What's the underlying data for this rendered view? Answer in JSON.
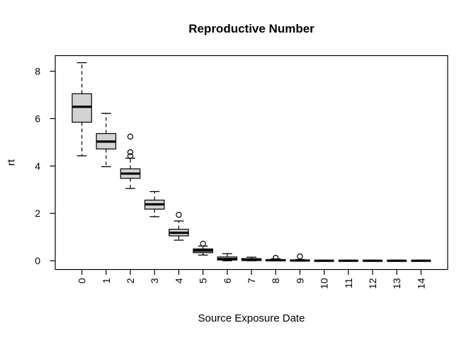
{
  "chart_data": {
    "type": "boxplot",
    "title": "Reproductive Number",
    "xlabel": "Source Exposure Date",
    "ylabel": "rt",
    "categories": [
      "0",
      "1",
      "2",
      "3",
      "4",
      "5",
      "6",
      "7",
      "8",
      "9",
      "10",
      "11",
      "12",
      "13",
      "14"
    ],
    "y_ticks": [
      0,
      2,
      4,
      6,
      8
    ],
    "ylim": [
      -0.37,
      8.66
    ],
    "grid": false,
    "legend": "none",
    "colors": {
      "box_fill": "#d3d3d3",
      "line": "#000000",
      "background": "#ffffff"
    },
    "boxes": [
      {
        "category": "0",
        "whisker_low": 4.43,
        "q1": 5.85,
        "median": 6.5,
        "q3": 7.05,
        "whisker_high": 8.36,
        "outliers": []
      },
      {
        "category": "1",
        "whisker_low": 3.97,
        "q1": 4.72,
        "median": 5.03,
        "q3": 5.37,
        "whisker_high": 6.22,
        "outliers": []
      },
      {
        "category": "2",
        "whisker_low": 3.05,
        "q1": 3.48,
        "median": 3.68,
        "q3": 3.88,
        "whisker_high": 4.33,
        "outliers": [
          4.42,
          4.58,
          5.24
        ]
      },
      {
        "category": "3",
        "whisker_low": 1.86,
        "q1": 2.18,
        "median": 2.38,
        "q3": 2.56,
        "whisker_high": 2.92,
        "outliers": []
      },
      {
        "category": "4",
        "whisker_low": 0.87,
        "q1": 1.05,
        "median": 1.18,
        "q3": 1.33,
        "whisker_high": 1.68,
        "outliers": [
          1.94
        ]
      },
      {
        "category": "5",
        "whisker_low": 0.24,
        "q1": 0.34,
        "median": 0.43,
        "q3": 0.5,
        "whisker_high": 0.62,
        "outliers": [
          0.72
        ]
      },
      {
        "category": "6",
        "whisker_low": 0.0,
        "q1": 0.03,
        "median": 0.07,
        "q3": 0.16,
        "whisker_high": 0.3,
        "outliers": []
      },
      {
        "category": "7",
        "whisker_low": 0.0,
        "q1": 0.01,
        "median": 0.04,
        "q3": 0.09,
        "whisker_high": 0.15,
        "outliers": []
      },
      {
        "category": "8",
        "whisker_low": 0.0,
        "q1": 0.0,
        "median": 0.02,
        "q3": 0.05,
        "whisker_high": 0.08,
        "outliers": [
          0.12
        ]
      },
      {
        "category": "9",
        "whisker_low": 0.0,
        "q1": 0.0,
        "median": 0.01,
        "q3": 0.03,
        "whisker_high": 0.05,
        "outliers": [
          0.18
        ]
      },
      {
        "category": "10",
        "whisker_low": 0.0,
        "q1": 0.0,
        "median": 0.0,
        "q3": 0.0,
        "whisker_high": 0.0,
        "outliers": []
      },
      {
        "category": "11",
        "whisker_low": 0.0,
        "q1": 0.0,
        "median": 0.0,
        "q3": 0.0,
        "whisker_high": 0.0,
        "outliers": []
      },
      {
        "category": "12",
        "whisker_low": 0.0,
        "q1": 0.0,
        "median": 0.0,
        "q3": 0.0,
        "whisker_high": 0.0,
        "outliers": []
      },
      {
        "category": "13",
        "whisker_low": 0.0,
        "q1": 0.0,
        "median": 0.0,
        "q3": 0.0,
        "whisker_high": 0.0,
        "outliers": []
      },
      {
        "category": "14",
        "whisker_low": 0.0,
        "q1": 0.0,
        "median": 0.0,
        "q3": 0.0,
        "whisker_high": 0.0,
        "outliers": []
      }
    ]
  }
}
